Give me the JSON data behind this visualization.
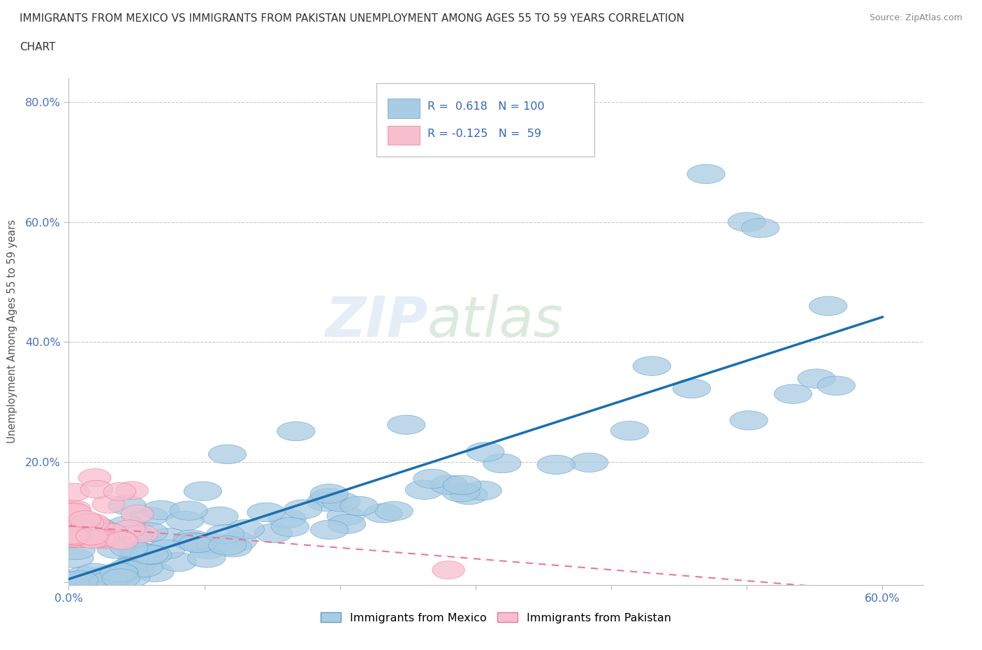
{
  "title_line1": "IMMIGRANTS FROM MEXICO VS IMMIGRANTS FROM PAKISTAN UNEMPLOYMENT AMONG AGES 55 TO 59 YEARS CORRELATION",
  "title_line2": "CHART",
  "source_text": "Source: ZipAtlas.com",
  "ylabel": "Unemployment Among Ages 55 to 59 years",
  "xlim": [
    0.0,
    0.63
  ],
  "ylim": [
    -0.005,
    0.84
  ],
  "xtick_positions": [
    0.0,
    0.1,
    0.2,
    0.3,
    0.4,
    0.5,
    0.6
  ],
  "xticklabels": [
    "0.0%",
    "",
    "",
    "",
    "",
    "",
    "60.0%"
  ],
  "ytick_positions": [
    0.0,
    0.2,
    0.4,
    0.6,
    0.8
  ],
  "yticklabels": [
    "",
    "20.0%",
    "40.0%",
    "60.0%",
    "80.0%"
  ],
  "mexico_color": "#a8cce4",
  "mexico_edge_color": "#5b9dc9",
  "pakistan_color": "#f7bece",
  "pakistan_edge_color": "#e8789a",
  "trend_mexico_color": "#1a6faf",
  "trend_pakistan_color": "#e8789a",
  "R_mexico": 0.618,
  "N_mexico": 100,
  "R_pakistan": -0.125,
  "N_pakistan": 59,
  "legend_mexico": "Immigrants from Mexico",
  "legend_pakistan": "Immigrants from Pakistan",
  "watermark_zip": "ZIP",
  "watermark_atlas": "atlas",
  "background_color": "#ffffff",
  "grid_color": "#c8c8c8",
  "tick_color": "#4472c4",
  "axis_color": "#bbbbbb",
  "title_color": "#333333",
  "source_color": "#888888",
  "ylabel_color": "#555555"
}
